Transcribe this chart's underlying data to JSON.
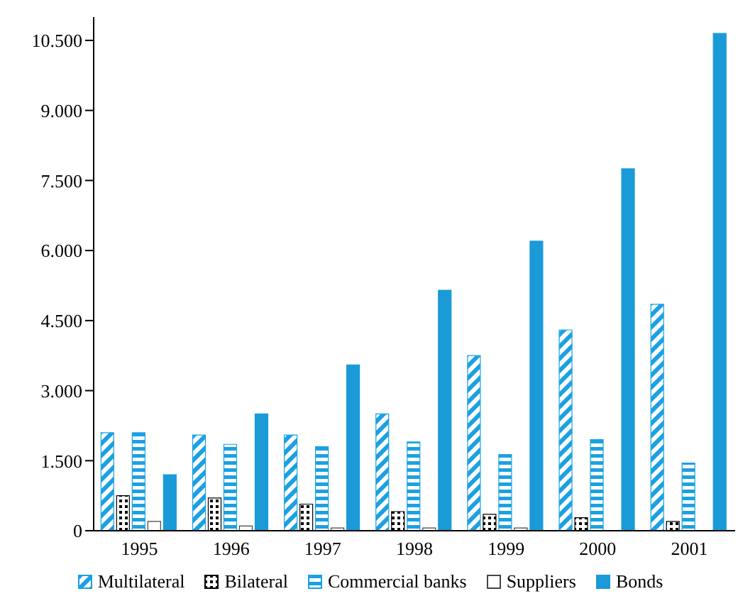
{
  "chart_data": {
    "type": "bar",
    "categories": [
      "1995",
      "1996",
      "1997",
      "1998",
      "1999",
      "2000",
      "2001"
    ],
    "series": [
      {
        "name": "Multilateral",
        "color": "#1ba1e2",
        "values": [
          2100,
          2050,
          2050,
          2500,
          3750,
          4300,
          4850
        ]
      },
      {
        "name": "Bilateral",
        "color": "#000000",
        "values": [
          750,
          700,
          570,
          410,
          350,
          280,
          200
        ]
      },
      {
        "name": "Commercial banks",
        "color": "#1ba1e2",
        "values": [
          2100,
          1850,
          1800,
          1900,
          1630,
          1950,
          1450
        ]
      },
      {
        "name": "Suppliers",
        "color": "#ffffff",
        "values": [
          200,
          100,
          60,
          60,
          60,
          null,
          null
        ]
      },
      {
        "name": "Bonds",
        "color": "#1a9ad6",
        "values": [
          1200,
          2500,
          3550,
          5150,
          6200,
          7750,
          10650
        ]
      }
    ],
    "ylim": [
      0,
      11000
    ],
    "yticks": [
      0,
      {
        "value": 1500,
        "label": "1.500"
      },
      {
        "value": 3000,
        "label": "3.000"
      },
      {
        "value": 4500,
        "label": "4.500"
      },
      {
        "value": 6000,
        "label": "6.000"
      },
      {
        "value": 7500,
        "label": "7.500"
      },
      {
        "value": 9000,
        "label": "9.000"
      },
      {
        "value": 10500,
        "label": "10.500"
      }
    ],
    "grid": false,
    "legend": "bottom"
  }
}
